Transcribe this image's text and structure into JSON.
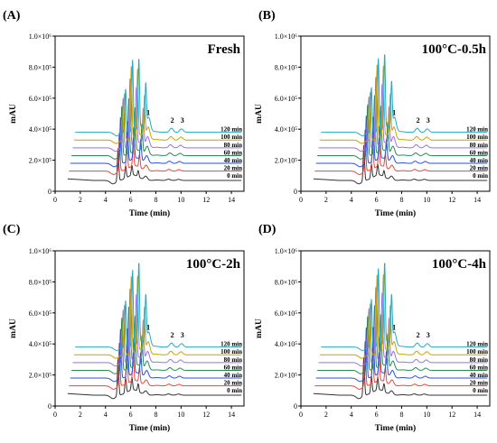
{
  "figure": {
    "colors": [
      "#333333",
      "#e8463c",
      "#2a4de0",
      "#2a8a54",
      "#9b6fe8",
      "#c9a400",
      "#25a9c4"
    ],
    "panel_letters": [
      "(A)",
      "(B)",
      "(C)",
      "(D)"
    ]
  },
  "chart_data": [
    {
      "type": "line",
      "panel": "(A)",
      "title": "Fresh",
      "xlabel": "Time (min)",
      "ylabel": "mAU",
      "xlim": [
        0,
        15
      ],
      "ylim": [
        0,
        1000000
      ],
      "xticks": [
        "0",
        "2",
        "4",
        "6",
        "8",
        "10",
        "12",
        "14"
      ],
      "yticks": [
        "0",
        "2.0×10⁵",
        "4.0×10⁵",
        "6.0×10⁵",
        "8.0×10⁵",
        "1.0×10⁶"
      ],
      "peak_labels": [
        {
          "label": "1",
          "x": 7.4
        },
        {
          "label": "2",
          "x": 9.3
        },
        {
          "label": "3",
          "x": 10.1
        }
      ],
      "series": [
        {
          "name": "0 min",
          "offset": 80000,
          "main_peaks": [
            {
              "x": 5.0,
              "h": 210000
            },
            {
              "x": 5.6,
              "h": 80000
            },
            {
              "x": 6.1,
              "h": 60000
            },
            {
              "x": 6.6,
              "h": 40000
            }
          ]
        },
        {
          "name": "20 min",
          "offset": 130000,
          "main_peaks": [
            {
              "x": 5.1,
              "h": 250000
            },
            {
              "x": 5.7,
              "h": 180000
            },
            {
              "x": 6.2,
              "h": 120000
            },
            {
              "x": 6.7,
              "h": 80000
            }
          ]
        },
        {
          "name": "40 min",
          "offset": 180000,
          "main_peaks": [
            {
              "x": 5.2,
              "h": 300000
            },
            {
              "x": 5.75,
              "h": 260000
            },
            {
              "x": 6.25,
              "h": 200000
            },
            {
              "x": 6.8,
              "h": 130000
            }
          ]
        },
        {
          "name": "60 min",
          "offset": 230000,
          "main_peaks": [
            {
              "x": 5.3,
              "h": 320000
            },
            {
              "x": 5.85,
              "h": 360000
            },
            {
              "x": 6.35,
              "h": 280000
            },
            {
              "x": 6.9,
              "h": 180000
            }
          ]
        },
        {
          "name": "80 min",
          "offset": 280000,
          "main_peaks": [
            {
              "x": 5.4,
              "h": 320000
            },
            {
              "x": 5.95,
              "h": 440000
            },
            {
              "x": 6.45,
              "h": 360000
            },
            {
              "x": 7.0,
              "h": 230000
            }
          ]
        },
        {
          "name": "100 min",
          "offset": 330000,
          "main_peaks": [
            {
              "x": 5.5,
              "h": 300000
            },
            {
              "x": 6.05,
              "h": 470000
            },
            {
              "x": 6.55,
              "h": 430000
            },
            {
              "x": 7.1,
              "h": 260000
            }
          ]
        },
        {
          "name": "120 min",
          "offset": 380000,
          "main_peaks": [
            {
              "x": 5.6,
              "h": 280000
            },
            {
              "x": 6.15,
              "h": 460000
            },
            {
              "x": 6.65,
              "h": 450000
            },
            {
              "x": 7.2,
              "h": 280000
            }
          ]
        }
      ]
    },
    {
      "type": "line",
      "panel": "(B)",
      "title": "100°C-0.5h",
      "xlabel": "Time (min)",
      "ylabel": "mAU",
      "xlim": [
        0,
        15
      ],
      "ylim": [
        0,
        1000000
      ],
      "xticks": [
        "0",
        "2",
        "4",
        "6",
        "8",
        "10",
        "12",
        "14"
      ],
      "yticks": [
        "0",
        "2.0×10⁵",
        "4.0×10⁵",
        "6.0×10⁵",
        "8.0×10⁵",
        "1.0×10⁶"
      ],
      "peak_labels": [
        {
          "label": "1",
          "x": 7.4
        },
        {
          "label": "2",
          "x": 9.3
        },
        {
          "label": "3",
          "x": 10.1
        }
      ],
      "series": [
        {
          "name": "0 min",
          "offset": 80000,
          "main_peaks": [
            {
              "x": 5.0,
              "h": 230000
            },
            {
              "x": 5.6,
              "h": 90000
            },
            {
              "x": 6.1,
              "h": 70000
            },
            {
              "x": 6.6,
              "h": 40000
            }
          ]
        },
        {
          "name": "20 min",
          "offset": 130000,
          "main_peaks": [
            {
              "x": 5.1,
              "h": 270000
            },
            {
              "x": 5.7,
              "h": 200000
            },
            {
              "x": 6.2,
              "h": 130000
            },
            {
              "x": 6.7,
              "h": 80000
            }
          ]
        },
        {
          "name": "40 min",
          "offset": 180000,
          "main_peaks": [
            {
              "x": 5.2,
              "h": 310000
            },
            {
              "x": 5.75,
              "h": 290000
            },
            {
              "x": 6.25,
              "h": 210000
            },
            {
              "x": 6.8,
              "h": 130000
            }
          ]
        },
        {
          "name": "60 min",
          "offset": 230000,
          "main_peaks": [
            {
              "x": 5.3,
              "h": 330000
            },
            {
              "x": 5.85,
              "h": 380000
            },
            {
              "x": 6.35,
              "h": 290000
            },
            {
              "x": 6.9,
              "h": 190000
            }
          ]
        },
        {
          "name": "80 min",
          "offset": 280000,
          "main_peaks": [
            {
              "x": 5.4,
              "h": 330000
            },
            {
              "x": 5.95,
              "h": 450000
            },
            {
              "x": 6.45,
              "h": 380000
            },
            {
              "x": 7.0,
              "h": 240000
            }
          ]
        },
        {
          "name": "100 min",
          "offset": 330000,
          "main_peaks": [
            {
              "x": 5.5,
              "h": 310000
            },
            {
              "x": 6.05,
              "h": 480000
            },
            {
              "x": 6.55,
              "h": 450000
            },
            {
              "x": 7.1,
              "h": 270000
            }
          ]
        },
        {
          "name": "120 min",
          "offset": 380000,
          "main_peaks": [
            {
              "x": 5.6,
              "h": 290000
            },
            {
              "x": 6.15,
              "h": 470000
            },
            {
              "x": 6.65,
              "h": 480000
            },
            {
              "x": 7.2,
              "h": 290000
            }
          ]
        }
      ]
    },
    {
      "type": "line",
      "panel": "(C)",
      "title": "100°C-2h",
      "xlabel": "Time (min)",
      "ylabel": "mAU",
      "xlim": [
        0,
        15
      ],
      "ylim": [
        0,
        1000000
      ],
      "xticks": [
        "0",
        "2",
        "4",
        "6",
        "8",
        "10",
        "12",
        "14"
      ],
      "yticks": [
        "0",
        "2.0×10⁵",
        "4.0×10⁵",
        "6.0×10⁵",
        "8.0×10⁵",
        "1.0×10⁶"
      ],
      "peak_labels": [
        {
          "label": "1",
          "x": 7.4
        },
        {
          "label": "2",
          "x": 9.3
        },
        {
          "label": "3",
          "x": 10.1
        }
      ],
      "series": [
        {
          "name": "0 min",
          "offset": 80000,
          "main_peaks": [
            {
              "x": 5.0,
              "h": 240000
            },
            {
              "x": 5.6,
              "h": 100000
            },
            {
              "x": 6.1,
              "h": 80000
            },
            {
              "x": 6.6,
              "h": 50000
            }
          ]
        },
        {
          "name": "20 min",
          "offset": 130000,
          "main_peaks": [
            {
              "x": 5.1,
              "h": 280000
            },
            {
              "x": 5.7,
              "h": 220000
            },
            {
              "x": 6.2,
              "h": 150000
            },
            {
              "x": 6.7,
              "h": 90000
            }
          ]
        },
        {
          "name": "40 min",
          "offset": 180000,
          "main_peaks": [
            {
              "x": 5.2,
              "h": 320000
            },
            {
              "x": 5.75,
              "h": 310000
            },
            {
              "x": 6.25,
              "h": 230000
            },
            {
              "x": 6.8,
              "h": 140000
            }
          ]
        },
        {
          "name": "60 min",
          "offset": 230000,
          "main_peaks": [
            {
              "x": 5.3,
              "h": 340000
            },
            {
              "x": 5.85,
              "h": 400000
            },
            {
              "x": 6.35,
              "h": 320000
            },
            {
              "x": 6.9,
              "h": 200000
            }
          ]
        },
        {
          "name": "80 min",
          "offset": 280000,
          "main_peaks": [
            {
              "x": 5.4,
              "h": 340000
            },
            {
              "x": 5.95,
              "h": 470000
            },
            {
              "x": 6.45,
              "h": 410000
            },
            {
              "x": 7.0,
              "h": 250000
            }
          ]
        },
        {
          "name": "100 min",
          "offset": 330000,
          "main_peaks": [
            {
              "x": 5.5,
              "h": 320000
            },
            {
              "x": 6.05,
              "h": 500000
            },
            {
              "x": 6.55,
              "h": 480000
            },
            {
              "x": 7.1,
              "h": 280000
            }
          ]
        },
        {
          "name": "120 min",
          "offset": 380000,
          "main_peaks": [
            {
              "x": 5.6,
              "h": 300000
            },
            {
              "x": 6.15,
              "h": 490000
            },
            {
              "x": 6.65,
              "h": 520000
            },
            {
              "x": 7.2,
              "h": 300000
            }
          ]
        }
      ]
    },
    {
      "type": "line",
      "panel": "(D)",
      "title": "100°C-4h",
      "xlabel": "Time (min)",
      "ylabel": "mAU",
      "xlim": [
        0,
        15
      ],
      "ylim": [
        0,
        1000000
      ],
      "xticks": [
        "0",
        "2",
        "4",
        "6",
        "8",
        "10",
        "12",
        "14"
      ],
      "yticks": [
        "0",
        "2.0×10⁵",
        "4.0×10⁵",
        "6.0×10⁵",
        "8.0×10⁵",
        "1.0×10⁶"
      ],
      "peak_labels": [
        {
          "label": "1",
          "x": 7.4
        },
        {
          "label": "2",
          "x": 9.3
        },
        {
          "label": "3",
          "x": 10.1
        }
      ],
      "series": [
        {
          "name": "0 min",
          "offset": 80000,
          "main_peaks": [
            {
              "x": 5.0,
              "h": 250000
            },
            {
              "x": 5.6,
              "h": 110000
            },
            {
              "x": 6.1,
              "h": 80000
            },
            {
              "x": 6.6,
              "h": 50000
            }
          ]
        },
        {
          "name": "20 min",
          "offset": 130000,
          "main_peaks": [
            {
              "x": 5.1,
              "h": 290000
            },
            {
              "x": 5.7,
              "h": 230000
            },
            {
              "x": 6.2,
              "h": 160000
            },
            {
              "x": 6.7,
              "h": 90000
            }
          ]
        },
        {
          "name": "40 min",
          "offset": 180000,
          "main_peaks": [
            {
              "x": 5.2,
              "h": 330000
            },
            {
              "x": 5.75,
              "h": 320000
            },
            {
              "x": 6.25,
              "h": 240000
            },
            {
              "x": 6.8,
              "h": 150000
            }
          ]
        },
        {
          "name": "60 min",
          "offset": 230000,
          "main_peaks": [
            {
              "x": 5.3,
              "h": 350000
            },
            {
              "x": 5.85,
              "h": 410000
            },
            {
              "x": 6.35,
              "h": 330000
            },
            {
              "x": 6.9,
              "h": 210000
            }
          ]
        },
        {
          "name": "80 min",
          "offset": 280000,
          "main_peaks": [
            {
              "x": 5.4,
              "h": 350000
            },
            {
              "x": 5.95,
              "h": 480000
            },
            {
              "x": 6.45,
              "h": 420000
            },
            {
              "x": 7.0,
              "h": 260000
            }
          ]
        },
        {
          "name": "100 min",
          "offset": 330000,
          "main_peaks": [
            {
              "x": 5.5,
              "h": 330000
            },
            {
              "x": 6.05,
              "h": 510000
            },
            {
              "x": 6.55,
              "h": 490000
            },
            {
              "x": 7.1,
              "h": 290000
            }
          ]
        },
        {
          "name": "120 min",
          "offset": 380000,
          "main_peaks": [
            {
              "x": 5.6,
              "h": 310000
            },
            {
              "x": 6.15,
              "h": 500000
            },
            {
              "x": 6.65,
              "h": 520000
            },
            {
              "x": 7.2,
              "h": 300000
            }
          ]
        }
      ]
    }
  ]
}
